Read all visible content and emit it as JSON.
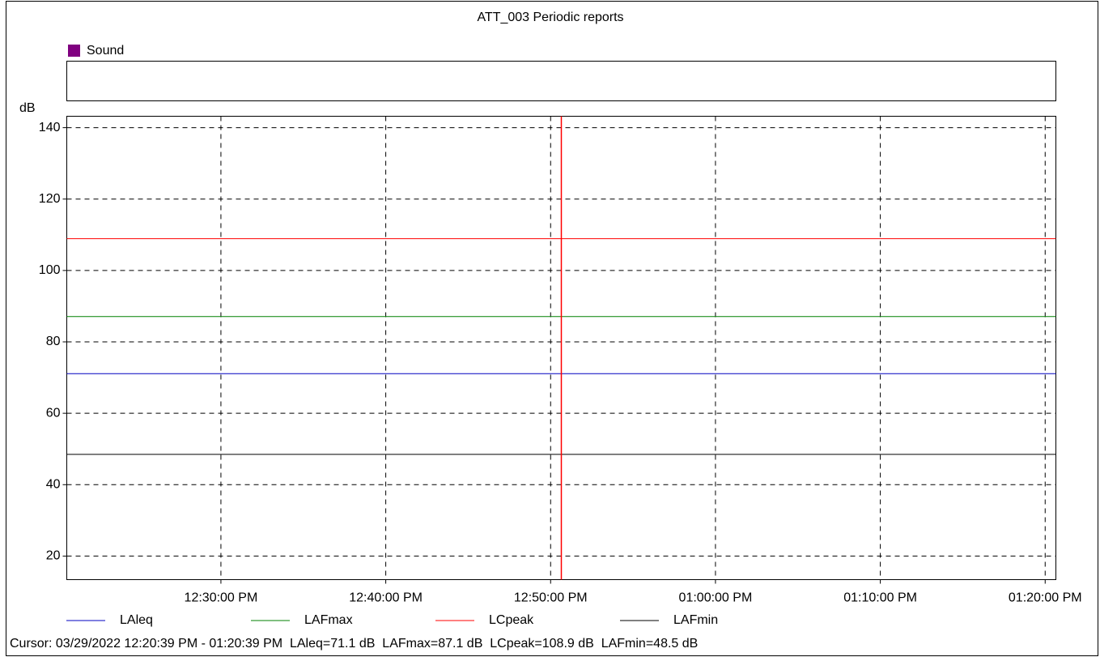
{
  "chart_data": {
    "type": "line",
    "title": "ATT_003 Periodic reports",
    "group_legend": {
      "name": "Sound",
      "color": "#800080"
    },
    "y_label": "dB",
    "x": [
      "12:20:39 PM",
      "01:20:39 PM"
    ],
    "xlim": [
      "12:20:39 PM",
      "01:20:39 PM"
    ],
    "xticks": [
      "12:30:00 PM",
      "12:40:00 PM",
      "12:50:00 PM",
      "01:00:00 PM",
      "01:10:00 PM",
      "01:20:00 PM"
    ],
    "ylim": [
      13.4,
      143.2
    ],
    "yticks": [
      20,
      40,
      60,
      80,
      100,
      120,
      140
    ],
    "grid": true,
    "cursor": {
      "x": "12:50:39 PM",
      "color": "#ff0000"
    },
    "series": [
      {
        "name": "LAleq",
        "color": "#0000c0",
        "values": [
          71.1,
          71.1
        ]
      },
      {
        "name": "LAFmax",
        "color": "#008000",
        "values": [
          87.1,
          87.1
        ]
      },
      {
        "name": "LCpeak",
        "color": "#ff0000",
        "values": [
          108.9,
          108.9
        ]
      },
      {
        "name": "LAFmin",
        "color": "#000000",
        "values": [
          48.5,
          48.5
        ]
      }
    ],
    "status_text": "Cursor: 03/29/2022 12:20:39 PM - 01:20:39 PM  LAleq=71.1 dB  LAFmax=87.1 dB  LCpeak=108.9 dB  LAFmin=48.5 dB"
  }
}
